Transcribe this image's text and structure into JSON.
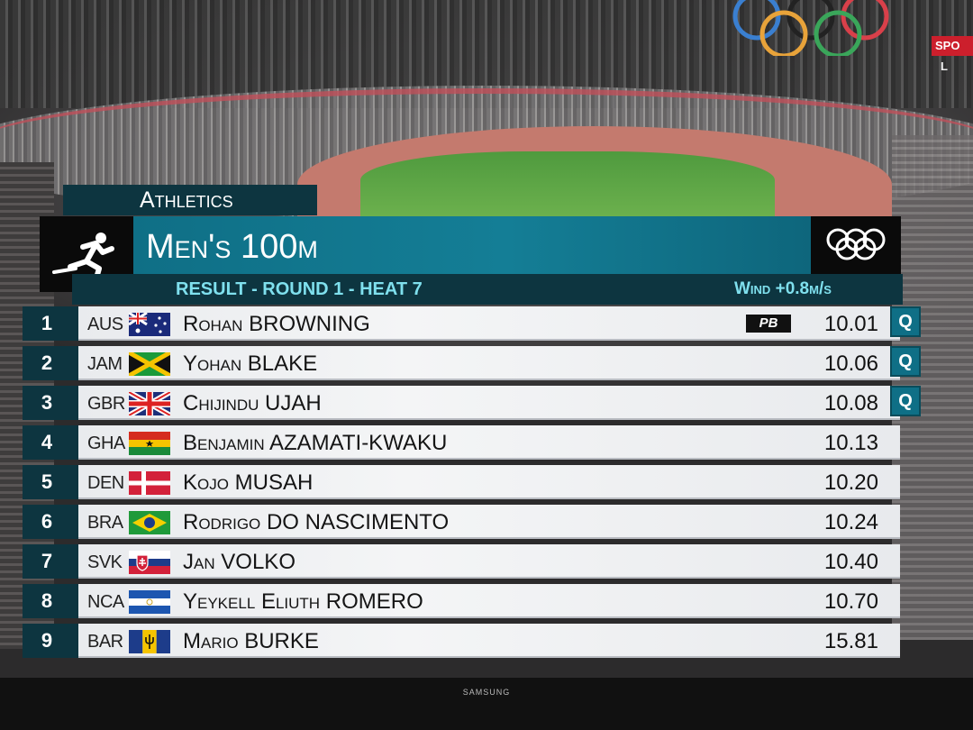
{
  "broadcast": {
    "channel_logo": "SPO",
    "channel_sub": "L",
    "tv_brand": "SAMSUNG"
  },
  "graphic": {
    "discipline": "Athletics",
    "event_title": "Men's 100m",
    "round": "RESULT - ROUND 1 - HEAT 7",
    "wind": "Wind +0.8m/s",
    "pictogram_icon": "sprinter-icon",
    "logo_icon": "olympic-rings-icon",
    "colors": {
      "dark_teal": "#0d3540",
      "teal": "#0f6f86",
      "cyan_text": "#7fe0ee",
      "row_bg": "#eeeff1"
    }
  },
  "results": [
    {
      "rank": "1",
      "noc": "AUS",
      "name": "Rohan BROWNING",
      "time": "10.01",
      "pb": "PB",
      "q": "Q",
      "flag": "aus-flag"
    },
    {
      "rank": "2",
      "noc": "JAM",
      "name": "Yohan BLAKE",
      "time": "10.06",
      "q": "Q",
      "flag": "jam-flag"
    },
    {
      "rank": "3",
      "noc": "GBR",
      "name": "Chijindu UJAH",
      "time": "10.08",
      "q": "Q",
      "flag": "gbr-flag"
    },
    {
      "rank": "4",
      "noc": "GHA",
      "name": "Benjamin AZAMATI-KWAKU",
      "time": "10.13",
      "flag": "gha-flag"
    },
    {
      "rank": "5",
      "noc": "DEN",
      "name": "Kojo MUSAH",
      "time": "10.20",
      "flag": "den-flag"
    },
    {
      "rank": "6",
      "noc": "BRA",
      "name": "Rodrigo DO NASCIMENTO",
      "time": "10.24",
      "flag": "bra-flag"
    },
    {
      "rank": "7",
      "noc": "SVK",
      "name": "Jan VOLKO",
      "time": "10.40",
      "flag": "svk-flag"
    },
    {
      "rank": "8",
      "noc": "NCA",
      "name": "Yeykell Eliuth ROMERO",
      "time": "10.70",
      "flag": "nca-flag"
    },
    {
      "rank": "9",
      "noc": "BAR",
      "name": "Mario BURKE",
      "time": "15.81",
      "flag": "bar-flag"
    }
  ]
}
